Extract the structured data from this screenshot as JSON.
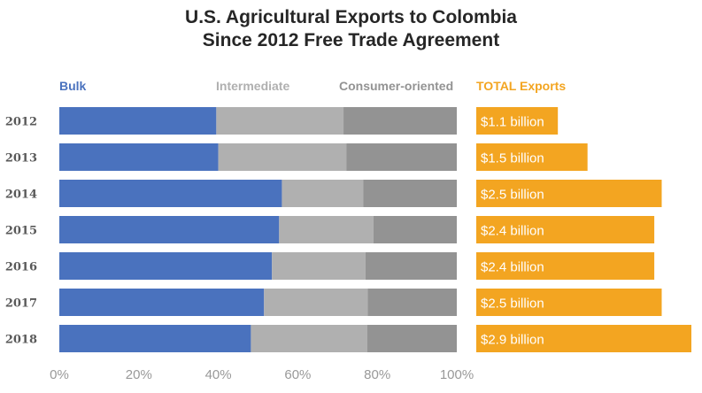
{
  "title_lines": [
    "U.S. Agricultural Exports to Colombia",
    "Since 2012 Free Trade Agreement"
  ],
  "colors": {
    "bulk": "#4a72be",
    "intermediate": "#b0b0b0",
    "consumer": "#939393",
    "total": "#f3a521",
    "axis_text": "#999999",
    "year_text": "#595959"
  },
  "legend": {
    "bulk": "Bulk",
    "intermediate": "Intermediate",
    "consumer": "Consumer-oriented",
    "total": "TOTAL Exports"
  },
  "chart_data": [
    {
      "type": "bar",
      "stacking": "percent",
      "orientation": "horizontal",
      "categories": [
        "2012",
        "2013",
        "2014",
        "2015",
        "2016",
        "2017",
        "2018"
      ],
      "series": [
        {
          "name": "Bulk",
          "values": [
            39.5,
            40,
            56,
            55.3,
            53.5,
            51.5,
            48.2
          ]
        },
        {
          "name": "Intermediate",
          "values": [
            32,
            32.2,
            20.5,
            23.7,
            23.5,
            26.1,
            29.3
          ]
        },
        {
          "name": "Consumer-oriented",
          "values": [
            28.5,
            27.8,
            23.5,
            21,
            23,
            22.4,
            22.5
          ]
        }
      ],
      "xlim": [
        0,
        100
      ],
      "xticks": [
        "0%",
        "20%",
        "40%",
        "60%",
        "80%",
        "100%"
      ],
      "legend_position": "top"
    },
    {
      "type": "bar",
      "orientation": "horizontal",
      "series_name": "TOTAL Exports",
      "categories": [
        "2012",
        "2013",
        "2014",
        "2015",
        "2016",
        "2017",
        "2018"
      ],
      "values": [
        1.1,
        1.5,
        2.5,
        2.4,
        2.4,
        2.5,
        2.9
      ],
      "data_labels": [
        "$1.1 billion",
        "$1.5 billion",
        "$2.5 billion",
        "$2.4 billion",
        "$2.4 billion",
        "$2.5 billion",
        "$2.9 billion"
      ]
    }
  ]
}
